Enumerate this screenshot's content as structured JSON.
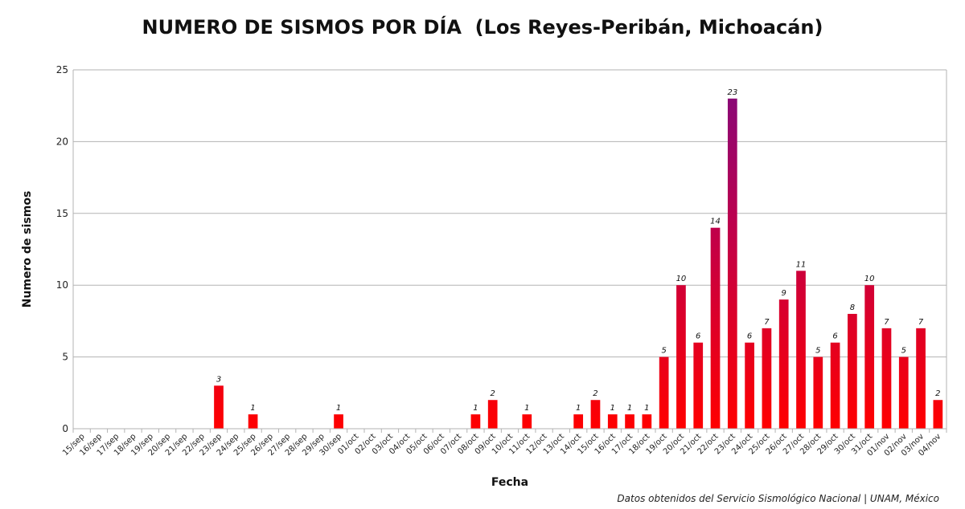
{
  "chart_data": {
    "type": "bar",
    "title": "NUMERO DE SISMOS POR DÍA  (Los Reyes-Peribán, Michoacán)",
    "xlabel": "Fecha",
    "ylabel": "Numero de sismos",
    "ylim": [
      0,
      25
    ],
    "yticks": [
      0,
      5,
      10,
      15,
      20,
      25
    ],
    "grid": true,
    "bar_gradient": {
      "top": "#7f0a7f",
      "bottom": "#ff0000"
    },
    "categories": [
      "15/sep",
      "16/sep",
      "17/sep",
      "18/sep",
      "19/sep",
      "20/sep",
      "21/sep",
      "22/sep",
      "23/sep",
      "24/sep",
      "25/sep",
      "26/sep",
      "27/sep",
      "28/sep",
      "29/sep",
      "30/sep",
      "01/oct",
      "02/oct",
      "03/oct",
      "04/oct",
      "05/oct",
      "06/oct",
      "07/oct",
      "08/oct",
      "09/oct",
      "10/oct",
      "11/oct",
      "12/oct",
      "13/oct",
      "14/oct",
      "15/oct",
      "16/oct",
      "17/oct",
      "18/oct",
      "19/oct",
      "20/oct",
      "21/oct",
      "22/oct",
      "23/oct",
      "24/oct",
      "25/oct",
      "26/oct",
      "27/oct",
      "28/oct",
      "29/oct",
      "30/oct",
      "31/oct",
      "01/nov",
      "02/nov",
      "03/nov",
      "04/nov"
    ],
    "values": [
      0,
      0,
      0,
      0,
      0,
      0,
      0,
      0,
      3,
      0,
      1,
      0,
      0,
      0,
      0,
      1,
      0,
      0,
      0,
      0,
      0,
      0,
      0,
      1,
      2,
      0,
      1,
      0,
      0,
      1,
      2,
      1,
      1,
      1,
      5,
      10,
      6,
      14,
      23,
      6,
      7,
      9,
      11,
      5,
      6,
      8,
      10,
      7,
      5,
      7,
      2
    ]
  },
  "footer_note": "Datos obtenidos del Servicio Sismológico Nacional | UNAM, México"
}
